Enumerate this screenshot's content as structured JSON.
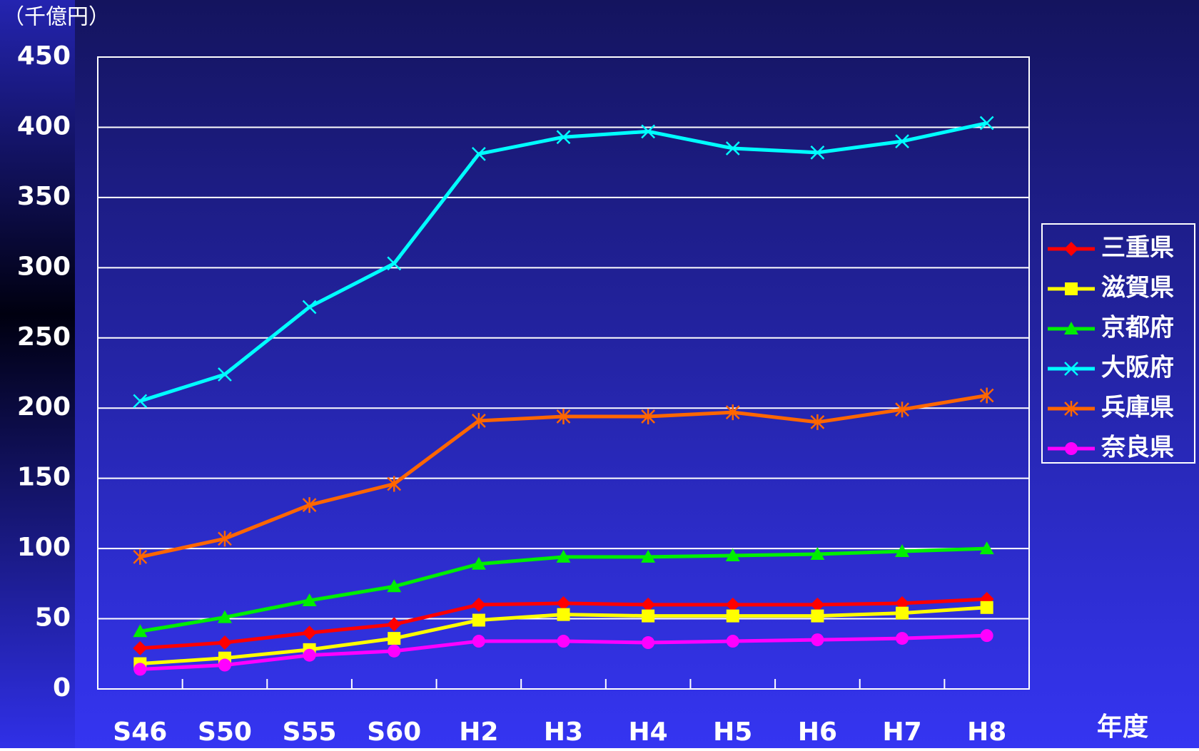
{
  "chart_data": {
    "type": "line",
    "y_label": "（千億円）",
    "x_label": "年度",
    "categories": [
      "S46",
      "S50",
      "S55",
      "S60",
      "H2",
      "H3",
      "H4",
      "H5",
      "H6",
      "H7",
      "H8"
    ],
    "series": [
      {
        "name": "三重県",
        "color": "#ff0000",
        "marker": "diamond",
        "values": [
          29,
          33,
          40,
          46,
          60,
          61,
          60,
          60,
          60,
          61,
          64
        ]
      },
      {
        "name": "滋賀県",
        "color": "#ffff00",
        "marker": "square",
        "values": [
          18,
          22,
          28,
          36,
          49,
          53,
          52,
          52,
          52,
          54,
          58
        ]
      },
      {
        "name": "京都府",
        "color": "#00ee00",
        "marker": "triangle",
        "values": [
          41,
          51,
          63,
          73,
          89,
          94,
          94,
          95,
          96,
          98,
          100
        ]
      },
      {
        "name": "大阪府",
        "color": "#00ffff",
        "marker": "x",
        "values": [
          205,
          224,
          272,
          303,
          381,
          393,
          397,
          385,
          382,
          390,
          403
        ]
      },
      {
        "name": "兵庫県",
        "color": "#ff6600",
        "marker": "asterisk",
        "values": [
          94,
          107,
          131,
          146,
          191,
          194,
          194,
          197,
          190,
          199,
          209
        ]
      },
      {
        "name": "奈良県",
        "color": "#ff00ff",
        "marker": "circle",
        "values": [
          14,
          17,
          24,
          27,
          34,
          34,
          33,
          34,
          35,
          36,
          38
        ]
      }
    ],
    "ylim": [
      0,
      450
    ],
    "yticks": [
      0,
      50,
      100,
      150,
      200,
      250,
      300,
      350,
      400,
      450
    ],
    "grid": true
  }
}
